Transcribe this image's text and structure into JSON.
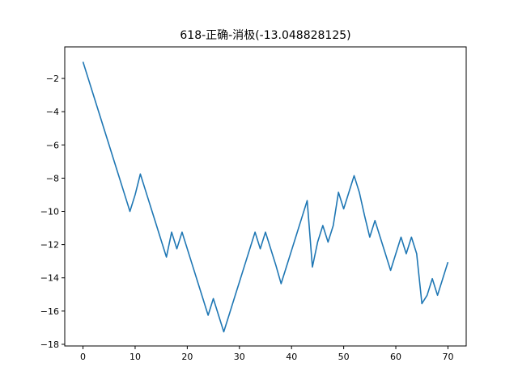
{
  "chart_data": {
    "type": "line",
    "title": "618-正确-消极(-13.048828125)",
    "xlabel": "",
    "ylabel": "",
    "xlim": [
      -3.5,
      73.5
    ],
    "ylim": [
      -18.1,
      -0.1
    ],
    "grid": false,
    "x_ticks": [
      0,
      10,
      20,
      30,
      40,
      50,
      60,
      70
    ],
    "x_tick_labels": [
      "0",
      "10",
      "20",
      "30",
      "40",
      "50",
      "60",
      "70"
    ],
    "y_ticks": [
      -2,
      -4,
      -6,
      -8,
      -10,
      -12,
      -14,
      -16,
      -18
    ],
    "y_tick_labels": [
      "−2",
      "−4",
      "−6",
      "−8",
      "−10",
      "−12",
      "−14",
      "−16",
      "−18"
    ],
    "series": [
      {
        "color": "#1f77b4",
        "x": [
          0,
          1,
          2,
          3,
          4,
          5,
          6,
          7,
          8,
          9,
          10,
          11,
          12,
          13,
          14,
          15,
          16,
          17,
          18,
          19,
          20,
          21,
          22,
          23,
          24,
          25,
          26,
          27,
          28,
          29,
          30,
          31,
          32,
          33,
          34,
          35,
          36,
          37,
          38,
          39,
          40,
          41,
          42,
          43,
          44,
          45,
          46,
          47,
          48,
          49,
          50,
          51,
          52,
          53,
          54,
          55,
          56,
          57,
          58,
          59,
          60,
          61,
          62,
          63,
          64,
          65,
          66,
          67,
          68,
          69,
          70
        ],
        "y": [
          -1,
          -2,
          -3,
          -4,
          -5,
          -6,
          -7,
          -8,
          -9,
          -10,
          -9,
          -7.75,
          -8.75,
          -9.75,
          -10.75,
          -11.75,
          -12.75,
          -11.25,
          -12.25,
          -11.25,
          -12.25,
          -13.25,
          -14.25,
          -15.25,
          -16.25,
          -15.25,
          -16.25,
          -17.25,
          -16.25,
          -15.25,
          -14.25,
          -13.25,
          -12.25,
          -11.25,
          -12.25,
          -11.25,
          -12.25,
          -13.25,
          -14.35,
          -13.35,
          -12.35,
          -11.35,
          -10.35,
          -9.35,
          -13.35,
          -11.85,
          -10.85,
          -11.85,
          -10.85,
          -8.85,
          -9.85,
          -8.85,
          -7.85,
          -8.85,
          -10.25,
          -11.55,
          -10.55,
          -11.55,
          -12.55,
          -13.55,
          -12.55,
          -11.55,
          -12.55,
          -11.55,
          -12.55,
          -15.55,
          -15.05,
          -14.05,
          -15.05,
          -14.05,
          -13.05
        ]
      }
    ]
  }
}
